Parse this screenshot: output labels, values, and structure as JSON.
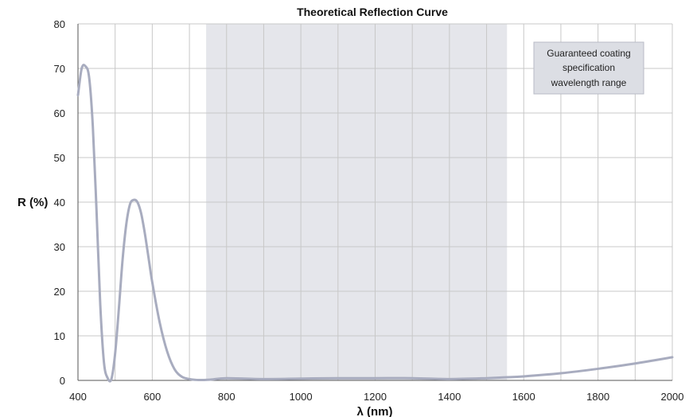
{
  "chart_data": {
    "type": "line",
    "title": "Theoretical Reflection Curve",
    "xlabel": "λ (nm)",
    "ylabel": "R (%)",
    "xlim": [
      400,
      2000
    ],
    "ylim": [
      0,
      80
    ],
    "xticks": [
      400,
      600,
      800,
      1000,
      1200,
      1400,
      1600,
      1800,
      2000
    ],
    "yticks": [
      0,
      10,
      20,
      30,
      40,
      50,
      60,
      70,
      80
    ],
    "grid": true,
    "shaded_region": {
      "x_start": 745,
      "x_end": 1555,
      "label_lines": [
        "Guaranteed coating",
        "specification",
        "wavelength range"
      ]
    },
    "series": [
      {
        "x": [
          400,
          410,
          420,
          430,
          440,
          450,
          460,
          470,
          480,
          490,
          500,
          510,
          520,
          530,
          540,
          550,
          560,
          570,
          580,
          590,
          600,
          620,
          640,
          660,
          680,
          700,
          720,
          740,
          760,
          800,
          900,
          1000,
          1100,
          1200,
          1300,
          1400,
          1500,
          1550,
          1600,
          1700,
          1800,
          1900,
          2000
        ],
        "y": [
          64,
          70,
          70.5,
          68,
          57,
          38,
          17,
          4,
          0.5,
          0.3,
          6,
          16,
          27,
          35,
          39.5,
          40.5,
          40,
          37.5,
          33,
          27.5,
          22,
          13,
          6.5,
          2.5,
          0.8,
          0.3,
          0.1,
          0.1,
          0.2,
          0.5,
          0.3,
          0.4,
          0.5,
          0.5,
          0.5,
          0.3,
          0.5,
          0.7,
          0.9,
          1.6,
          2.6,
          3.8,
          5.2
        ]
      }
    ],
    "colors": {
      "line": "#a8acbf",
      "shade": "#e5e6eb",
      "grid": "#c8c8c8",
      "axis": "#555555",
      "legend_bg": "#dcdee4",
      "legend_border": "#b8bbc6"
    }
  }
}
